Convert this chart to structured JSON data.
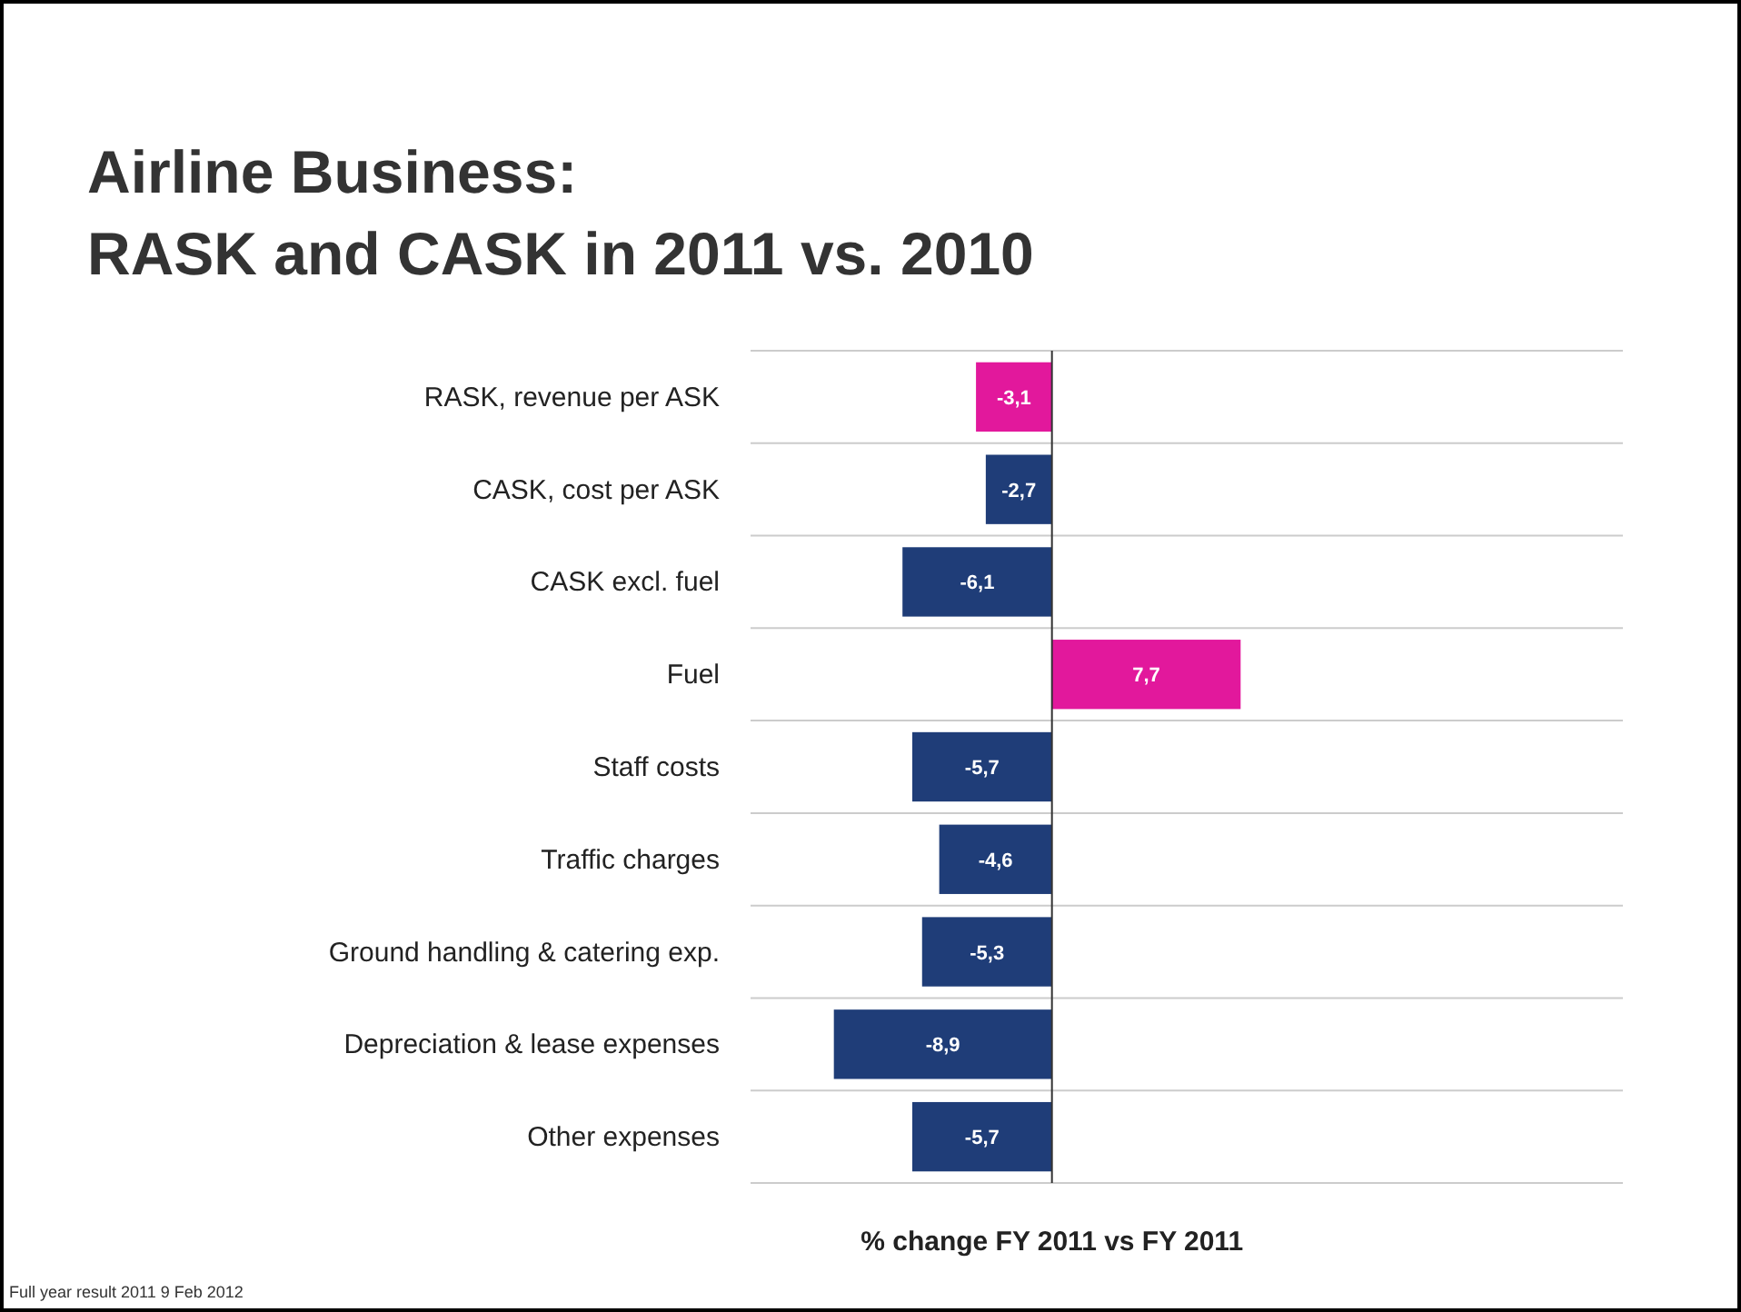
{
  "chart_data": {
    "type": "bar",
    "orientation": "horizontal",
    "title": "Airline Business:\nRASK and CASK in 2011 vs. 2010",
    "xlabel": "% change FY 2011 vs FY 2011",
    "categories": [
      "RASK, revenue per ASK",
      "CASK, cost per ASK",
      "CASK excl. fuel",
      "Fuel",
      "Staff costs",
      "Traffic charges",
      "Ground handling & catering exp.",
      "Depreciation & lease expenses",
      "Other expenses"
    ],
    "values": [
      -3.1,
      -2.7,
      -6.1,
      7.7,
      -5.7,
      -4.6,
      -5.3,
      -8.9,
      -5.7
    ],
    "value_labels": [
      "-3,1",
      "-2,7",
      "-6,1",
      "7,7",
      "-5,7",
      "-4,6",
      "-5,3",
      "-8,9",
      "-5,7"
    ],
    "colors": [
      "#e2189c",
      "#1f3d78",
      "#1f3d78",
      "#e2189c",
      "#1f3d78",
      "#1f3d78",
      "#1f3d78",
      "#1f3d78",
      "#1f3d78"
    ],
    "xlim": [
      -12.3,
      23.3
    ],
    "tick_labels": "y",
    "grid": "y",
    "annotations": [
      "Full year result 2011 9 Feb 2012"
    ]
  }
}
